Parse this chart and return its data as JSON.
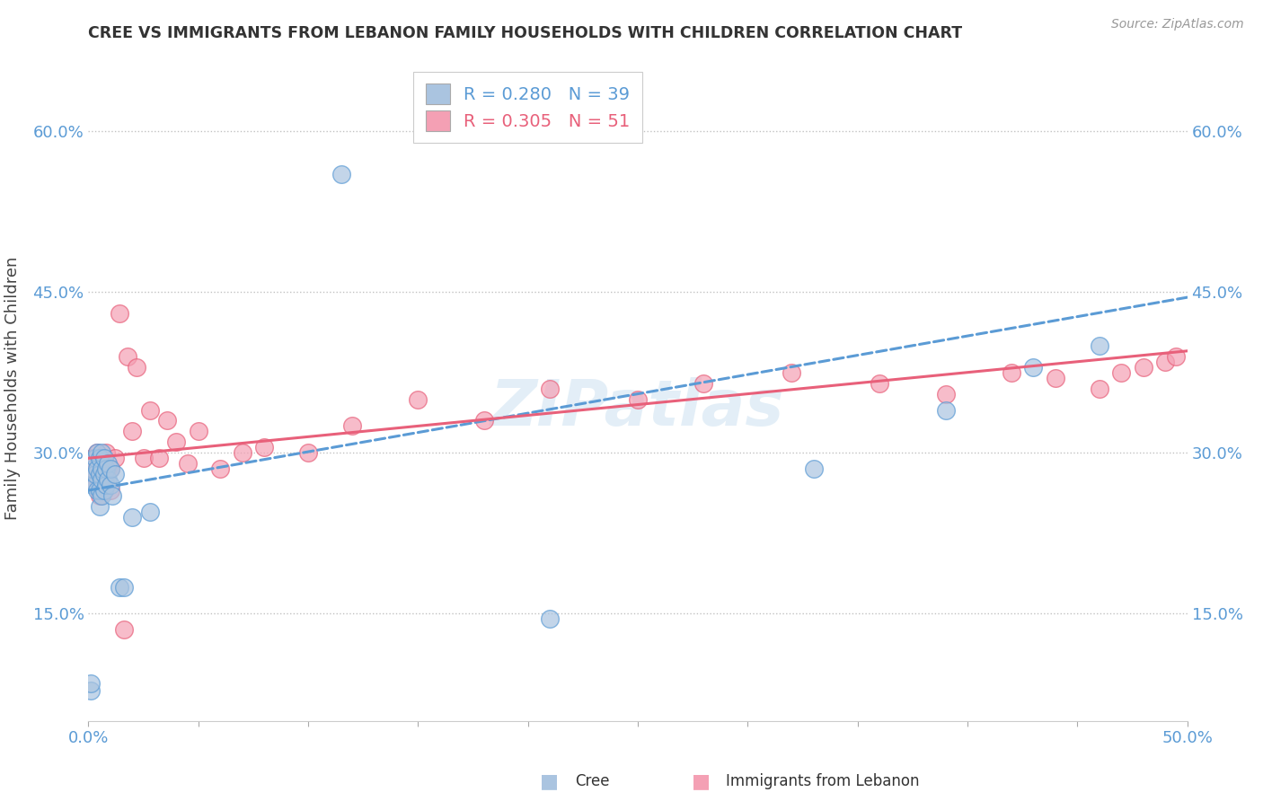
{
  "title": "CREE VS IMMIGRANTS FROM LEBANON FAMILY HOUSEHOLDS WITH CHILDREN CORRELATION CHART",
  "source": "Source: ZipAtlas.com",
  "xlabel_label": "Cree",
  "xlabel_label2": "Immigrants from Lebanon",
  "ylabel": "Family Households with Children",
  "xmin": 0.0,
  "xmax": 0.5,
  "ymin": 0.05,
  "ymax": 0.67,
  "xticks": [
    0.0,
    0.05,
    0.1,
    0.15,
    0.2,
    0.25,
    0.3,
    0.35,
    0.4,
    0.45,
    0.5
  ],
  "xticklabels_show": [
    "0.0%",
    "",
    "",
    "",
    "",
    "",
    "",
    "",
    "",
    "",
    "50.0%"
  ],
  "ytick_positions": [
    0.15,
    0.3,
    0.45,
    0.6
  ],
  "yticklabels": [
    "15.0%",
    "30.0%",
    "45.0%",
    "60.0%"
  ],
  "cree_color": "#aac4e0",
  "lebanon_color": "#f4a0b4",
  "cree_line_color": "#5b9bd5",
  "lebanon_line_color": "#e8607a",
  "watermark": "ZIPatlas",
  "cree_x": [
    0.001,
    0.001,
    0.002,
    0.002,
    0.003,
    0.003,
    0.003,
    0.004,
    0.004,
    0.004,
    0.005,
    0.005,
    0.005,
    0.005,
    0.006,
    0.006,
    0.006,
    0.006,
    0.007,
    0.007,
    0.007,
    0.008,
    0.008,
    0.009,
    0.009,
    0.01,
    0.01,
    0.011,
    0.012,
    0.014,
    0.016,
    0.02,
    0.028,
    0.115,
    0.21,
    0.33,
    0.39,
    0.43,
    0.46
  ],
  "cree_y": [
    0.078,
    0.085,
    0.27,
    0.285,
    0.27,
    0.28,
    0.295,
    0.265,
    0.285,
    0.3,
    0.25,
    0.265,
    0.28,
    0.295,
    0.26,
    0.275,
    0.285,
    0.3,
    0.265,
    0.28,
    0.295,
    0.27,
    0.285,
    0.275,
    0.29,
    0.27,
    0.285,
    0.26,
    0.28,
    0.175,
    0.175,
    0.24,
    0.245,
    0.56,
    0.145,
    0.285,
    0.34,
    0.38,
    0.4
  ],
  "lebanon_x": [
    0.001,
    0.002,
    0.002,
    0.003,
    0.003,
    0.004,
    0.004,
    0.005,
    0.005,
    0.006,
    0.006,
    0.007,
    0.007,
    0.008,
    0.008,
    0.009,
    0.01,
    0.01,
    0.012,
    0.014,
    0.016,
    0.018,
    0.02,
    0.022,
    0.025,
    0.028,
    0.032,
    0.036,
    0.04,
    0.045,
    0.05,
    0.06,
    0.07,
    0.08,
    0.1,
    0.12,
    0.15,
    0.18,
    0.21,
    0.25,
    0.28,
    0.32,
    0.36,
    0.39,
    0.42,
    0.44,
    0.46,
    0.47,
    0.48,
    0.49,
    0.495
  ],
  "lebanon_y": [
    0.275,
    0.28,
    0.295,
    0.27,
    0.29,
    0.275,
    0.3,
    0.26,
    0.285,
    0.27,
    0.295,
    0.265,
    0.29,
    0.28,
    0.3,
    0.285,
    0.265,
    0.285,
    0.295,
    0.43,
    0.135,
    0.39,
    0.32,
    0.38,
    0.295,
    0.34,
    0.295,
    0.33,
    0.31,
    0.29,
    0.32,
    0.285,
    0.3,
    0.305,
    0.3,
    0.325,
    0.35,
    0.33,
    0.36,
    0.35,
    0.365,
    0.375,
    0.365,
    0.355,
    0.375,
    0.37,
    0.36,
    0.375,
    0.38,
    0.385,
    0.39
  ]
}
